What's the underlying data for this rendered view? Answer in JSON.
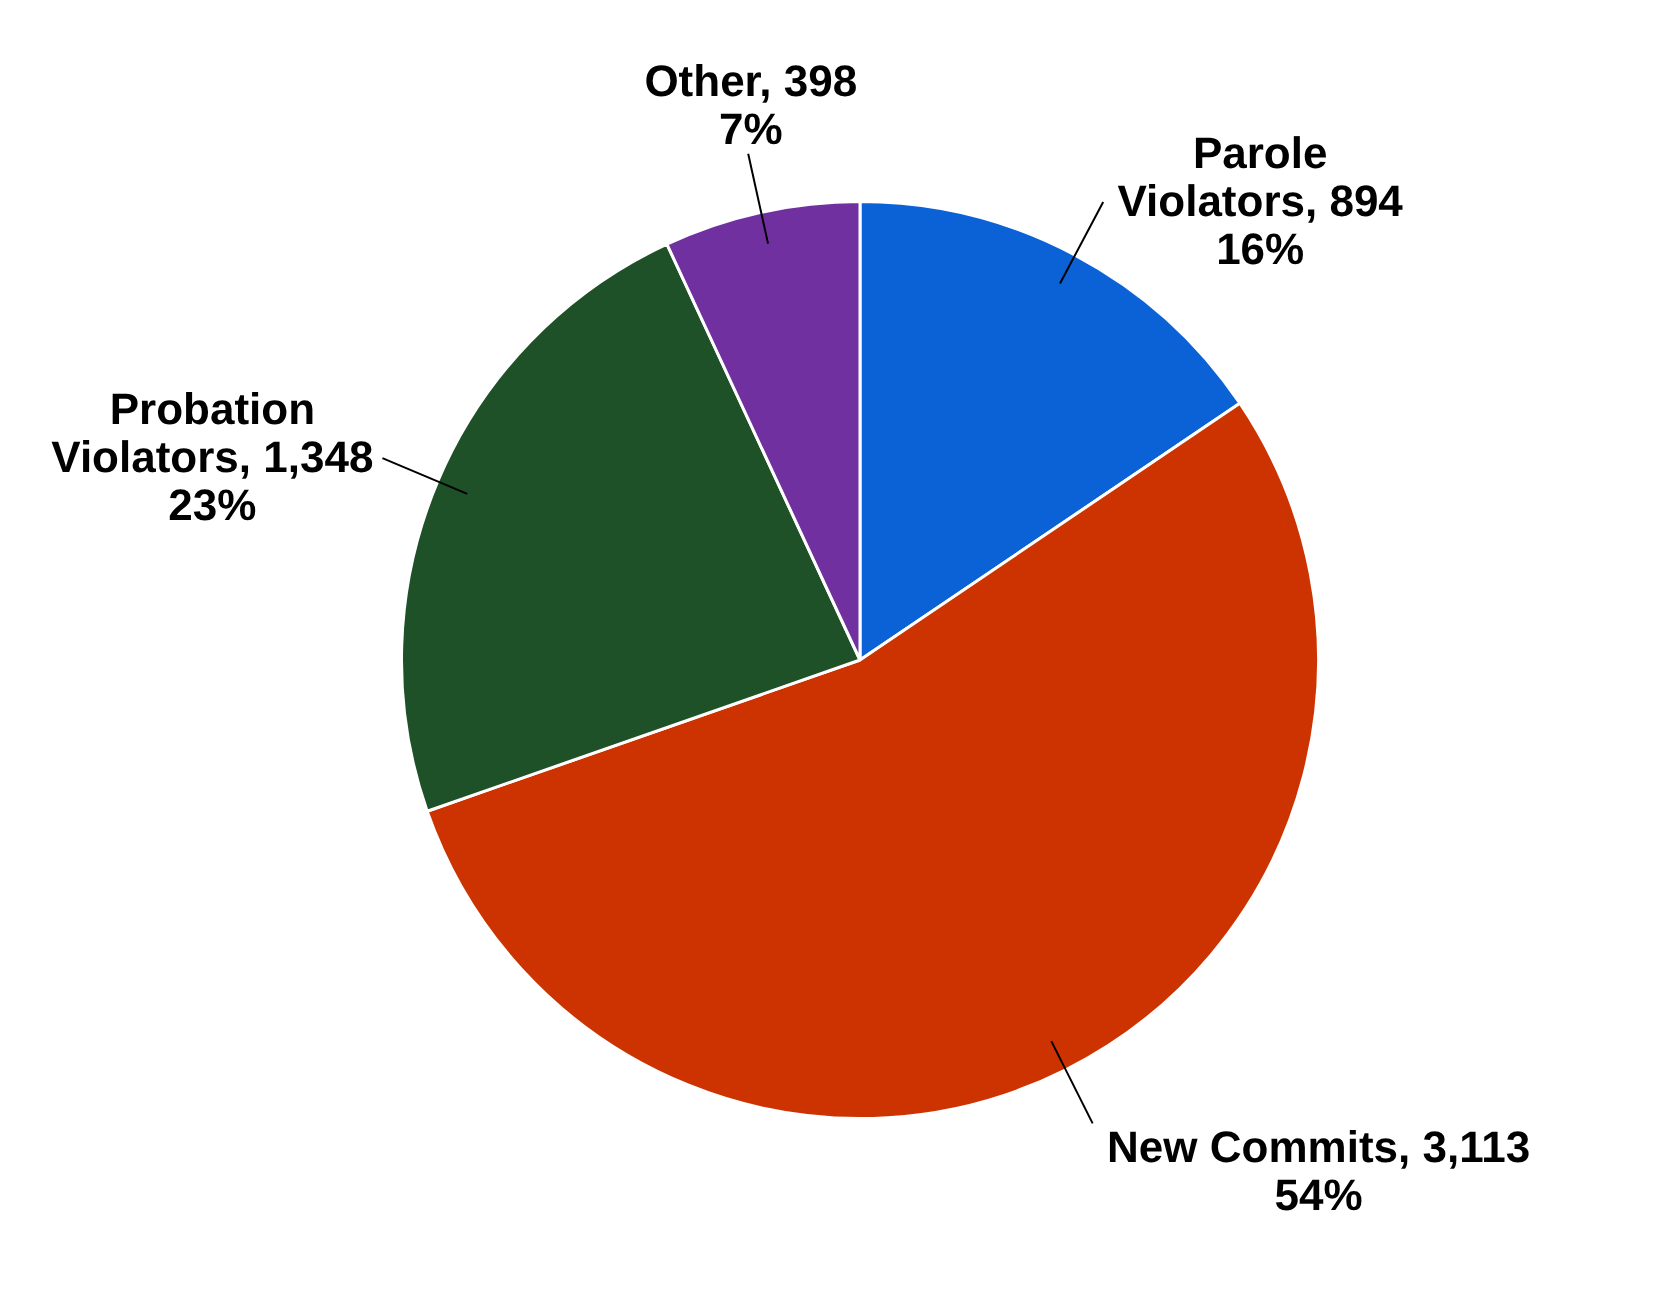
{
  "chart_data": {
    "type": "pie",
    "categories": [
      "Parole Violators",
      "New Commits",
      "Probation Violators",
      "Other"
    ],
    "values": [
      894,
      3113,
      1348,
      398
    ],
    "colors": [
      "#0b62d6",
      "#cc3300",
      "#1f5128",
      "#7030a0"
    ],
    "value_labels": [
      "894\n16%",
      "3,113\n54%",
      "1,348\n23%",
      "398\n7%"
    ],
    "legend": false
  }
}
